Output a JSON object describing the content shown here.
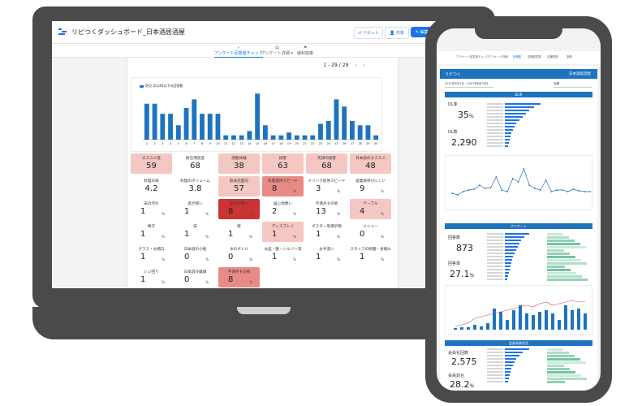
{
  "laptop": {
    "app_title": "リピつくダッシュボード_日本酒居酒屋",
    "buttons": {
      "reset": "リセット",
      "share": "共有",
      "edit": "編集"
    },
    "tabs": [
      {
        "icon": "✓",
        "label": "アンケート回答者チェック",
        "active": true
      },
      {
        "icon": "▤",
        "label": "アンケート詳細 ▾",
        "active": false
      },
      {
        "icon": "⚑",
        "label": "緩和施策",
        "active": false
      }
    ],
    "pager": "1 - 29 / 29",
    "chart_data": {
      "type": "bar",
      "legend": "評点 点以40以下の回答数",
      "categories": [
        "1",
        "2",
        "3",
        "4",
        "5",
        "6",
        "7",
        "8",
        "9",
        "10",
        "11",
        "12",
        "13",
        "14",
        "15",
        "16",
        "17",
        "18",
        "19",
        "20",
        "21",
        "22",
        "23",
        "24",
        "25",
        "26",
        "27",
        "28",
        "29",
        "30"
      ],
      "values": [
        25,
        25,
        18,
        18,
        10,
        22,
        28,
        18,
        18,
        18,
        3,
        3,
        3,
        6,
        32,
        10,
        3,
        3,
        5,
        3,
        3,
        3,
        11,
        13,
        28,
        23,
        13,
        10,
        10,
        3
      ],
      "ylim": [
        0,
        35
      ]
    },
    "tiles": [
      {
        "label": "オススメ度",
        "value": "59",
        "unit": "",
        "bg": "#f4c7c3"
      },
      {
        "label": "総合満足度",
        "value": "68",
        "unit": "",
        "bg": "#ffffff"
      },
      {
        "label": "感動体験",
        "value": "38",
        "unit": "",
        "bg": "#f4c7c3"
      },
      {
        "label": "接客",
        "value": "63",
        "unit": "",
        "bg": "#f4c7c3"
      },
      {
        "label": "笑顔の接客",
        "value": "68",
        "unit": "",
        "bg": "#f4c7c3"
      },
      {
        "label": "日本酒のオススメ",
        "value": "48",
        "unit": "",
        "bg": "#f4c7c3"
      },
      {
        "label": "料理の味",
        "value": "4.2",
        "unit": "",
        "bg": "#ffffff"
      },
      {
        "label": "料理のボリューム",
        "value": "3.8",
        "unit": "",
        "bg": "#ffffff"
      },
      {
        "label": "飲食店面向",
        "value": "57",
        "unit": "",
        "bg": "#f4c7c3"
      },
      {
        "label": "料理提供スピード",
        "value": "8",
        "unit": "%",
        "bg": "#e88b86"
      },
      {
        "label": "ドリンク提供スピード",
        "value": "3",
        "unit": "%",
        "bg": "#ffffff"
      },
      {
        "label": "従業員呼びにくい",
        "value": "9",
        "unit": "%",
        "bg": "#ffffff"
      },
      {
        "label": "床の汚れ",
        "value": "1",
        "unit": "%",
        "bg": "#ffffff"
      },
      {
        "label": "席が狭い",
        "value": "1",
        "unit": "%",
        "bg": "#ffffff"
      },
      {
        "label": "店内が暗い",
        "value": "8",
        "unit": "%",
        "bg": "#cc3333"
      },
      {
        "label": "居心地悪い",
        "value": "2",
        "unit": "%",
        "bg": "#ffffff"
      },
      {
        "label": "不満点その他",
        "value": "13",
        "unit": "%",
        "bg": "#ffffff"
      },
      {
        "label": "テーブル",
        "value": "4",
        "unit": "%",
        "bg": "#f4c7c3"
      },
      {
        "label": "椅子",
        "value": "1",
        "unit": "%",
        "bg": "#ffffff"
      },
      {
        "label": "床",
        "value": "1",
        "unit": "%",
        "bg": "#ffffff"
      },
      {
        "label": "壁",
        "value": "1",
        "unit": "%",
        "bg": "#ffffff"
      },
      {
        "label": "ディスプレイ",
        "value": "1",
        "unit": "%",
        "bg": "#f4c7c3"
      },
      {
        "label": "ポスター等掲示物",
        "value": "1",
        "unit": "%",
        "bg": "#ffffff"
      },
      {
        "label": "メニュー",
        "value": "0",
        "unit": "%",
        "bg": "#ffffff"
      },
      {
        "label": "グラス・お猪口",
        "value": "1",
        "unit": "%",
        "bg": "#ffffff"
      },
      {
        "label": "日本酒の小瓶",
        "value": "0",
        "unit": "%",
        "bg": "#ffffff"
      },
      {
        "label": "水のボトル",
        "value": "0",
        "unit": "%",
        "bg": "#ffffff"
      },
      {
        "label": "お皿・箸・シルバー等",
        "value": "1",
        "unit": "%",
        "bg": "#ffffff"
      },
      {
        "label": "お手洗い",
        "value": "1",
        "unit": "%",
        "bg": "#ffffff"
      },
      {
        "label": "スタッフの制服・身嗜み",
        "value": "1",
        "unit": "%",
        "bg": "#ffffff"
      },
      {
        "label": "レジ回り",
        "value": "1",
        "unit": "%",
        "bg": "#ffffff"
      },
      {
        "label": "日本酒冷蔵庫",
        "value": "0",
        "unit": "%",
        "bg": "#ffffff"
      },
      {
        "label": "不満点その他",
        "value": "8",
        "unit": "%",
        "bg": "#e88b86"
      }
    ]
  },
  "phone": {
    "tabs": [
      "アンケート回答者チェック",
      "アンケート詳細",
      "評価数",
      "店舗回答数",
      "店舗別数",
      "施策"
    ],
    "brand": "リピつく",
    "brand_right": "日本酒居酒屋",
    "filter_left": "2021年6月1日 - 2021年6月30日",
    "filter_right": "店舗",
    "sections": [
      "DL率",
      "アンケート",
      "会員系統状況"
    ],
    "kpis": [
      {
        "label": "DL率",
        "value": "35",
        "unit": "%"
      },
      {
        "label": "DL数",
        "value": "2,290",
        "unit": ""
      },
      {
        "label": "回答数",
        "value": "873",
        "unit": ""
      },
      {
        "label": "回答率",
        "value": "27.1",
        "unit": "%"
      },
      {
        "label": "会員化回数",
        "value": "2,575",
        "unit": ""
      },
      {
        "label": "会員割合",
        "value": "28.2",
        "unit": "%"
      }
    ]
  }
}
